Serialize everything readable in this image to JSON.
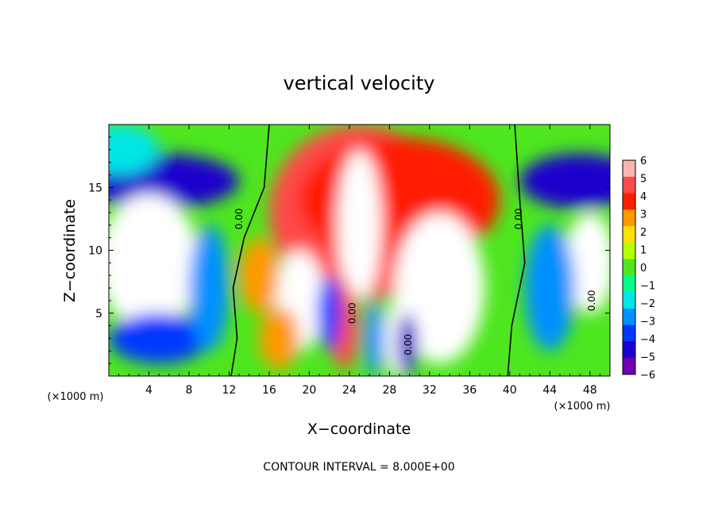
{
  "chart_data": {
    "type": "heatmap",
    "title": "vertical velocity",
    "xlabel": "X−coordinate",
    "ylabel": "Z−coordinate",
    "x_unit": "(×1000 m)",
    "x_unit_right": "(×1000 m)",
    "footer": "CONTOUR INTERVAL = 8.000E+00",
    "xlim": [
      0,
      50
    ],
    "ylim": [
      0,
      20
    ],
    "x_ticks": [
      4,
      8,
      12,
      16,
      20,
      24,
      28,
      32,
      36,
      40,
      44,
      48
    ],
    "y_ticks": [
      5,
      10,
      15
    ],
    "colorbar": {
      "values": [
        6,
        5,
        4,
        3,
        2,
        1,
        0,
        -1,
        -2,
        -3,
        -4,
        -5,
        -6
      ],
      "colors": [
        "#fbb4b4",
        "#ff4a4a",
        "#ff1e00",
        "#ff9900",
        "#ffe000",
        "#b4ff00",
        "#4ee61e",
        "#00ff8c",
        "#00e6e6",
        "#0090ff",
        "#0038ff",
        "#1e00cc",
        "#7000b0"
      ],
      "saturated_high": "#ffffff",
      "range": [
        -6,
        6
      ]
    },
    "contour_labels": [
      "0.00",
      "0.00",
      "0.00",
      "0.00",
      "0.00"
    ],
    "blobs": [
      {
        "x": 25,
        "y": 13,
        "rx": 9,
        "ry": 7,
        "v": 4.5
      },
      {
        "x": 29,
        "y": 14,
        "rx": 10,
        "ry": 5,
        "v": 4
      },
      {
        "x": 25,
        "y": 12,
        "rx": 2.2,
        "ry": 6,
        "v": 7
      },
      {
        "x": 33,
        "y": 7,
        "rx": 4.5,
        "ry": 6,
        "v": 7.5
      },
      {
        "x": 19,
        "y": 6,
        "rx": 2.5,
        "ry": 4,
        "v": 6.5
      },
      {
        "x": 23.5,
        "y": 4,
        "rx": 1.4,
        "ry": 3.5,
        "v": 5
      },
      {
        "x": 22,
        "y": 5,
        "rx": 1.2,
        "ry": 3,
        "v": -4
      },
      {
        "x": 28.8,
        "y": 3,
        "rx": 1.3,
        "ry": 3.2,
        "v": 6.5
      },
      {
        "x": 29.8,
        "y": 2.5,
        "rx": 1,
        "ry": 2.5,
        "v": -5
      },
      {
        "x": 26.5,
        "y": 3,
        "rx": 1,
        "ry": 3,
        "v": -3
      },
      {
        "x": 17,
        "y": 3,
        "rx": 2,
        "ry": 2.5,
        "v": 3
      },
      {
        "x": 15,
        "y": 8,
        "rx": 2,
        "ry": 3,
        "v": 2.5
      },
      {
        "x": 5,
        "y": 15.5,
        "rx": 8,
        "ry": 2.2,
        "v": -5
      },
      {
        "x": 47,
        "y": 15.5,
        "rx": 6,
        "ry": 2.2,
        "v": -5
      },
      {
        "x": 4,
        "y": 9,
        "rx": 5,
        "ry": 5.5,
        "v": 7
      },
      {
        "x": 48,
        "y": 9,
        "rx": 2.5,
        "ry": 4,
        "v": 7
      },
      {
        "x": 5,
        "y": 3,
        "rx": 5,
        "ry": 2,
        "v": -4
      },
      {
        "x": 10,
        "y": 7,
        "rx": 2,
        "ry": 5,
        "v": -3.5
      },
      {
        "x": 44,
        "y": 7,
        "rx": 2.5,
        "ry": 5,
        "v": -3.5
      },
      {
        "x": 1,
        "y": 18,
        "rx": 4,
        "ry": 2,
        "v": -2
      }
    ]
  }
}
